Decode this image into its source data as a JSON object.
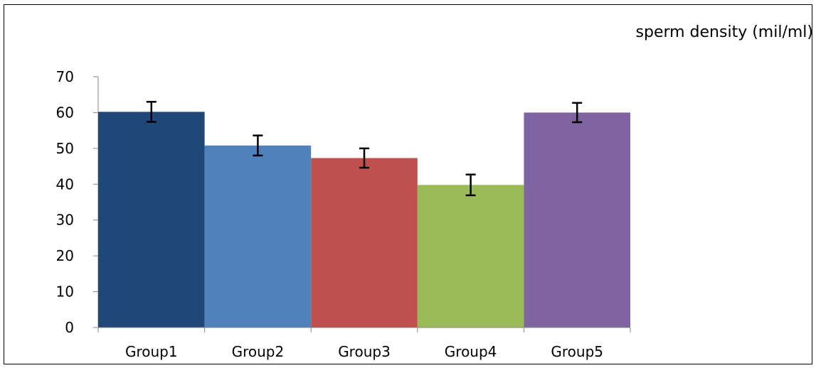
{
  "chart_data": {
    "type": "bar",
    "title": "sperm density (mil/ml)",
    "xlabel": "",
    "ylabel": "",
    "categories": [
      "Group1",
      "Group2",
      "Group3",
      "Group4",
      "Group5"
    ],
    "values": [
      60.2,
      50.8,
      47.3,
      39.8,
      60.0
    ],
    "error": [
      2.8,
      2.8,
      2.7,
      2.9,
      2.7
    ],
    "ylim": [
      0,
      70
    ],
    "yticks": [
      "0",
      "10",
      "20",
      "30",
      "40",
      "50",
      "60",
      "70"
    ],
    "colors": [
      "#1F4778",
      "#4F81BD",
      "#C0504D",
      "#9BBB59",
      "#8064A2"
    ],
    "grid": false,
    "legend": "none"
  }
}
